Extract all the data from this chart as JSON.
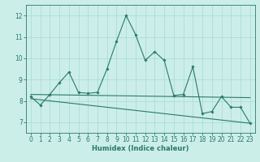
{
  "title": "",
  "xlabel": "Humidex (Indice chaleur)",
  "ylabel": "",
  "bg_color": "#cceee8",
  "grid_color": "#aadddd",
  "line_color": "#2a7a6a",
  "spine_color": "#2a7a6a",
  "xlim": [
    -0.5,
    23.5
  ],
  "ylim": [
    6.5,
    12.5
  ],
  "xticks": [
    0,
    1,
    2,
    3,
    4,
    5,
    6,
    7,
    8,
    9,
    10,
    11,
    12,
    13,
    14,
    15,
    16,
    17,
    18,
    19,
    20,
    21,
    22,
    23
  ],
  "yticks": [
    7,
    8,
    9,
    10,
    11,
    12
  ],
  "series1_x": [
    0,
    1,
    2,
    3,
    4,
    5,
    6,
    7,
    8,
    9,
    10,
    11,
    12,
    13,
    14,
    15,
    16,
    17,
    18,
    19,
    20,
    21,
    22,
    23
  ],
  "series1_y": [
    8.2,
    7.8,
    8.3,
    8.85,
    9.35,
    8.4,
    8.35,
    8.4,
    9.5,
    10.8,
    12.0,
    11.1,
    9.9,
    10.3,
    9.9,
    8.25,
    8.3,
    9.6,
    7.4,
    7.5,
    8.2,
    7.7,
    7.7,
    6.95
  ],
  "series2_x": [
    0,
    23
  ],
  "series2_y": [
    8.3,
    8.15
  ],
  "series3_x": [
    0,
    23
  ],
  "series3_y": [
    8.1,
    6.95
  ],
  "font_size_label": 6,
  "font_size_tick": 5.5
}
